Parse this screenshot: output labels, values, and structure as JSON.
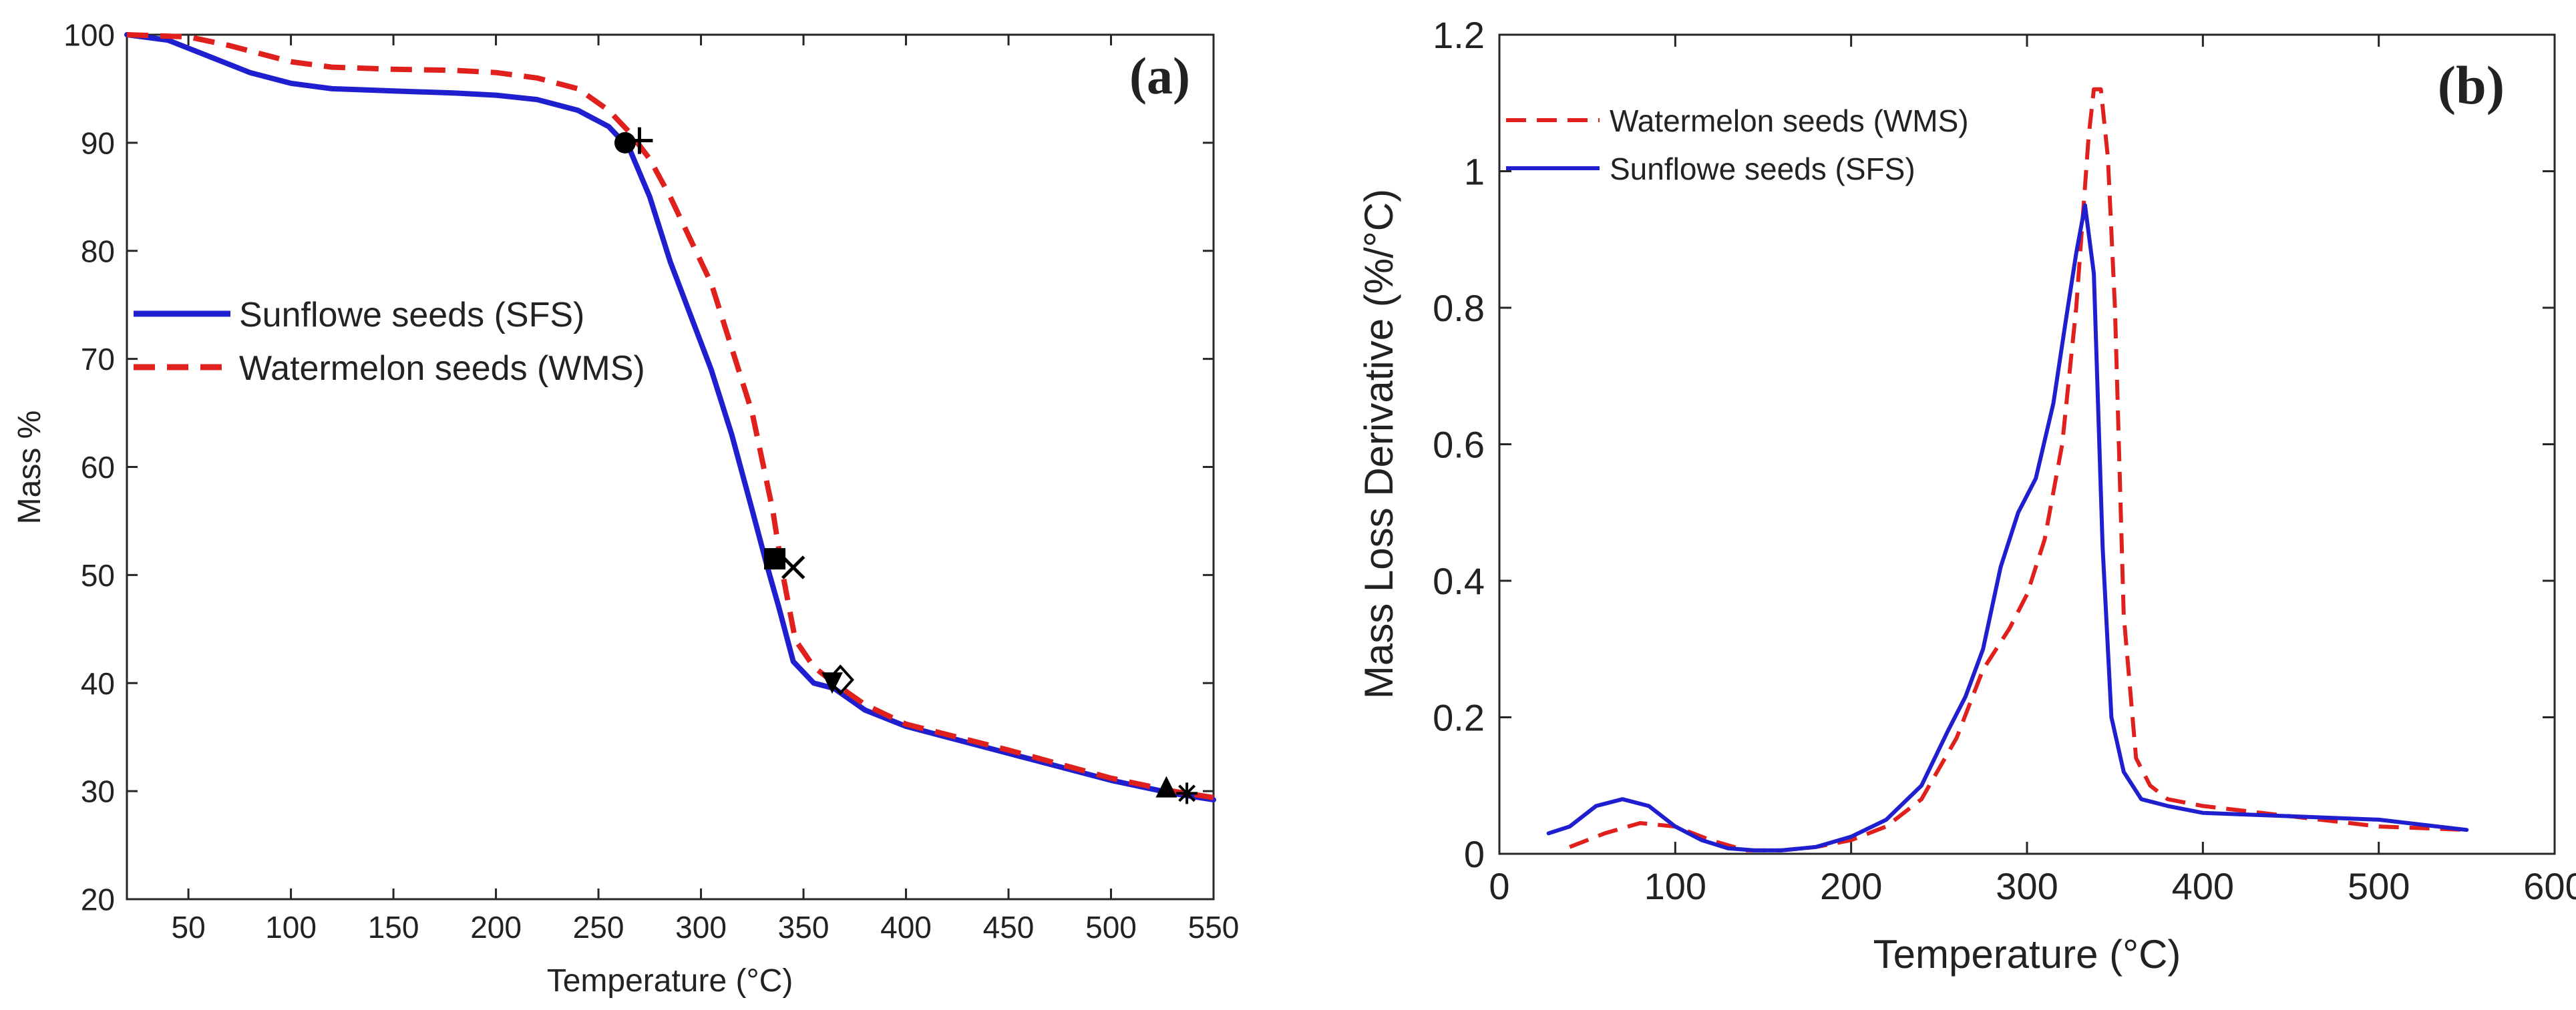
{
  "chart_data": [
    {
      "type": "line",
      "panel_label": "(a)",
      "xlabel": "Temperature (°C)",
      "ylabel": "Mass %",
      "xlim": [
        20,
        550
      ],
      "ylim": [
        20,
        100
      ],
      "xticks": [
        50,
        100,
        150,
        200,
        250,
        300,
        350,
        400,
        450,
        500,
        550
      ],
      "yticks": [
        20,
        30,
        40,
        50,
        60,
        70,
        80,
        90,
        100
      ],
      "legend_position": "center-left",
      "series": [
        {
          "name": "Sunflowe seeds (SFS)",
          "color": "#1f1fcf",
          "style": "solid",
          "x": [
            20,
            40,
            60,
            80,
            100,
            120,
            150,
            180,
            200,
            220,
            240,
            255,
            265,
            275,
            285,
            295,
            305,
            315,
            325,
            332,
            338,
            345,
            355,
            365,
            380,
            400,
            450,
            500,
            530,
            550
          ],
          "y": [
            100,
            99.5,
            98,
            96.5,
            95.5,
            95,
            94.8,
            94.6,
            94.4,
            94,
            93,
            91.5,
            89.5,
            85,
            79,
            74,
            69,
            63,
            56,
            51,
            47,
            42,
            40,
            39.5,
            37.5,
            36,
            33.5,
            31,
            29.8,
            29.2
          ]
        },
        {
          "name": "Watermelon seeds (WMS)",
          "color": "#e0201c",
          "style": "dashed",
          "x": [
            20,
            50,
            70,
            90,
            100,
            120,
            150,
            180,
            200,
            220,
            240,
            255,
            265,
            275,
            285,
            295,
            305,
            315,
            325,
            335,
            340,
            346,
            355,
            365,
            380,
            400,
            450,
            500,
            530,
            550
          ],
          "y": [
            100,
            99.8,
            99,
            98,
            97.5,
            97,
            96.8,
            96.7,
            96.5,
            96,
            95,
            93,
            91,
            88.5,
            85,
            81,
            77,
            71,
            65,
            56,
            50,
            44,
            41.5,
            40,
            38,
            36.2,
            33.8,
            31.2,
            30,
            29.4
          ]
        }
      ],
      "markers": [
        {
          "symbol": "circle",
          "x": 263,
          "y": 90
        },
        {
          "symbol": "plus",
          "x": 270,
          "y": 90.2
        },
        {
          "symbol": "square",
          "x": 336,
          "y": 51.5
        },
        {
          "symbol": "cross",
          "x": 345,
          "y": 50.7
        },
        {
          "symbol": "triangle-down",
          "x": 364,
          "y": 40
        },
        {
          "symbol": "diamond",
          "x": 368,
          "y": 40.3
        },
        {
          "symbol": "triangle-up",
          "x": 527,
          "y": 30.4
        },
        {
          "symbol": "asterisk",
          "x": 537,
          "y": 29.8
        }
      ]
    },
    {
      "type": "line",
      "panel_label": "(b)",
      "xlabel": "Temperature (°C)",
      "ylabel": "Mass Loss Derivative (%/°C)",
      "xlim": [
        0,
        600
      ],
      "ylim": [
        0,
        1.2
      ],
      "xticks": [
        0,
        100,
        200,
        300,
        400,
        500,
        600
      ],
      "yticks": [
        0,
        0.2,
        0.4,
        0.6,
        0.8,
        1,
        1.2
      ],
      "ytick_labels": [
        "0",
        "0.2",
        "0.4",
        "0.6",
        "0.8",
        "1",
        "1.2"
      ],
      "legend_position": "top-left",
      "series": [
        {
          "name": "Watermelon seeds (WMS)",
          "color": "#e0201c",
          "style": "dashed",
          "x": [
            40,
            60,
            80,
            100,
            120,
            140,
            160,
            180,
            200,
            220,
            240,
            260,
            275,
            290,
            300,
            310,
            320,
            328,
            335,
            338,
            342,
            346,
            350,
            355,
            362,
            370,
            380,
            400,
            450,
            500,
            550
          ],
          "y": [
            0.01,
            0.03,
            0.045,
            0.04,
            0.02,
            0.005,
            0.005,
            0.01,
            0.02,
            0.04,
            0.08,
            0.17,
            0.27,
            0.33,
            0.38,
            0.46,
            0.6,
            0.8,
            1.05,
            1.12,
            1.12,
            1.02,
            0.8,
            0.35,
            0.14,
            0.1,
            0.08,
            0.07,
            0.055,
            0.04,
            0.035
          ]
        },
        {
          "name": "Sunflowe seeds (SFS)",
          "color": "#1f1fcf",
          "style": "solid",
          "x": [
            28,
            40,
            55,
            70,
            85,
            100,
            115,
            130,
            145,
            160,
            180,
            200,
            220,
            240,
            255,
            265,
            275,
            285,
            295,
            305,
            315,
            322,
            328,
            333,
            338,
            343,
            348,
            355,
            365,
            380,
            400,
            450,
            500,
            550
          ],
          "y": [
            0.03,
            0.04,
            0.07,
            0.08,
            0.07,
            0.04,
            0.02,
            0.008,
            0.005,
            0.005,
            0.01,
            0.025,
            0.05,
            0.1,
            0.18,
            0.23,
            0.3,
            0.42,
            0.5,
            0.55,
            0.66,
            0.78,
            0.88,
            0.95,
            0.85,
            0.45,
            0.2,
            0.12,
            0.08,
            0.07,
            0.06,
            0.055,
            0.05,
            0.035
          ]
        }
      ]
    }
  ]
}
